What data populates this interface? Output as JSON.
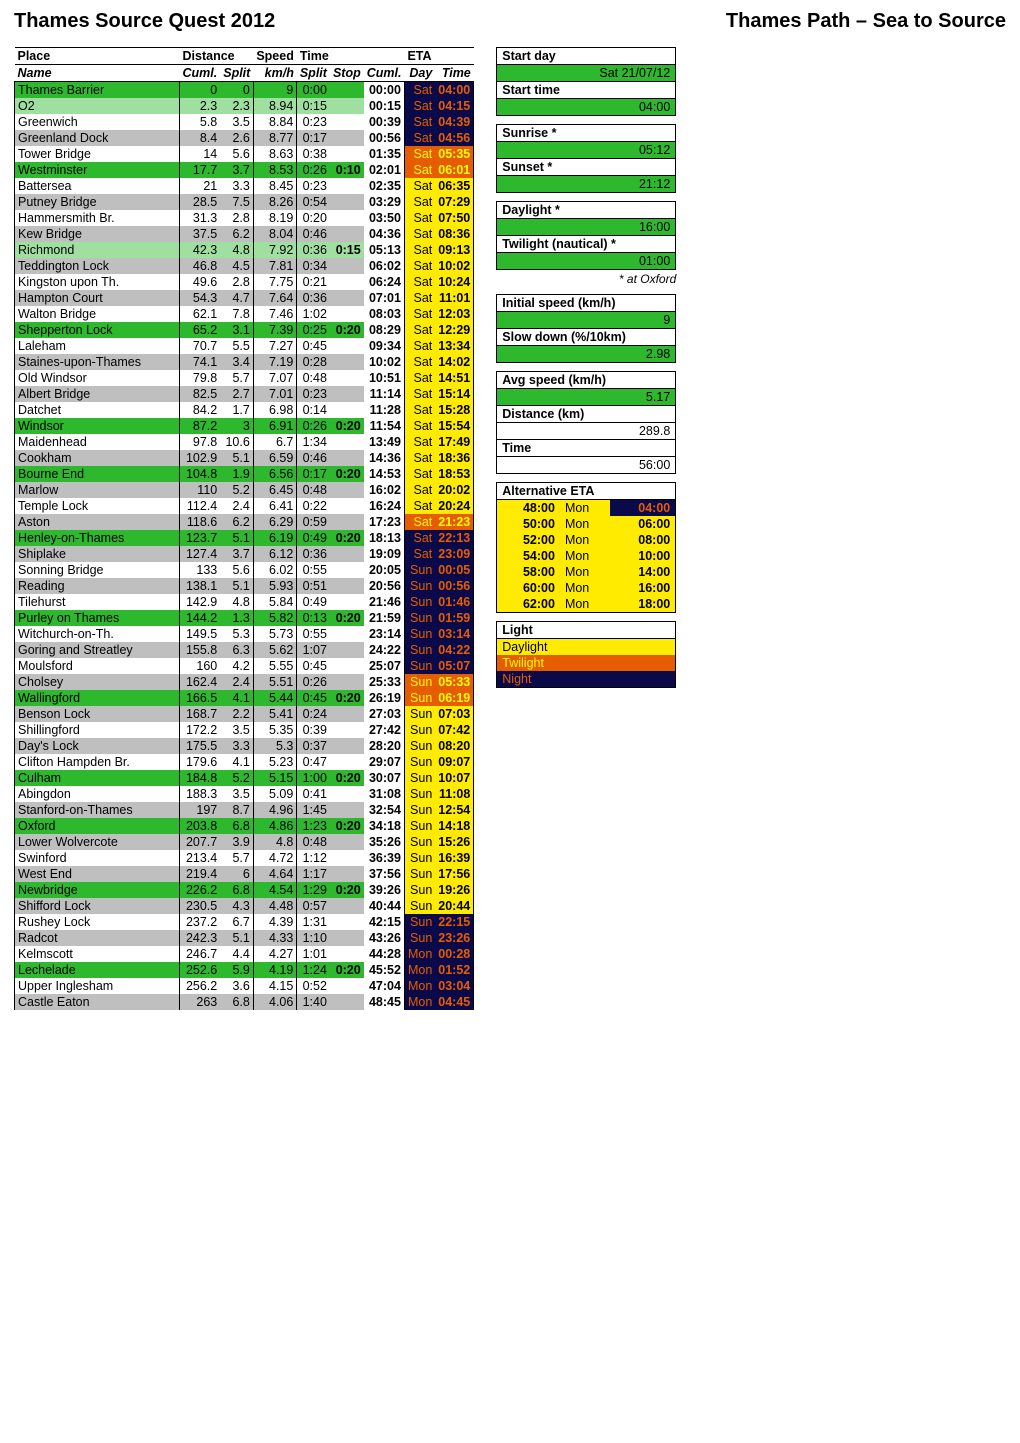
{
  "header": {
    "title_left": "Thames Source Quest 2012",
    "title_right": "Thames Path – Sea to Source"
  },
  "columns": {
    "group_place": "Place",
    "group_distance": "Distance",
    "group_speed": "Speed",
    "group_time": "Time",
    "group_eta": "ETA",
    "name": "Name",
    "cuml_dist": "Cuml.",
    "split": "Split",
    "kmh": "km/h",
    "split_t": "Split",
    "stop": "Stop",
    "cuml_t": "Cuml.",
    "day": "Day",
    "time": "Time"
  },
  "light_palette": {
    "daylight": {
      "bg": "#ffeb00",
      "fg": "#000000"
    },
    "twilight": {
      "bg": "#e65c00",
      "fg": "#ffff00"
    },
    "night": {
      "bg": "#0a0a4a",
      "fg": "#e65c00"
    }
  },
  "row_palette": {
    "green_light": "#9fdf9f",
    "green_dark": "#2eb82e",
    "grey": "#bfbfbf",
    "white": "#ffffff"
  },
  "rows": [
    {
      "name": "Thames Barrier",
      "cuml": 0,
      "split": 0,
      "kmh": 9,
      "tsplit": "0:00",
      "stop": "",
      "tcuml": "00:00",
      "day": "Sat",
      "eta": "04:00",
      "shade": "green_dark",
      "light": "night"
    },
    {
      "name": "O2",
      "cuml": 2.3,
      "split": 2.3,
      "kmh": 8.94,
      "tsplit": "0:15",
      "stop": "",
      "tcuml": "00:15",
      "day": "Sat",
      "eta": "04:15",
      "shade": "green_light",
      "light": "night"
    },
    {
      "name": "Greenwich",
      "cuml": 5.8,
      "split": 3.5,
      "kmh": 8.84,
      "tsplit": "0:23",
      "stop": "",
      "tcuml": "00:39",
      "day": "Sat",
      "eta": "04:39",
      "shade": "white",
      "light": "night"
    },
    {
      "name": "Greenland Dock",
      "cuml": 8.4,
      "split": 2.6,
      "kmh": 8.77,
      "tsplit": "0:17",
      "stop": "",
      "tcuml": "00:56",
      "day": "Sat",
      "eta": "04:56",
      "shade": "grey",
      "light": "night"
    },
    {
      "name": "Tower Bridge",
      "cuml": 14,
      "split": 5.6,
      "kmh": 8.63,
      "tsplit": "0:38",
      "stop": "",
      "tcuml": "01:35",
      "day": "Sat",
      "eta": "05:35",
      "shade": "white",
      "light": "twilight"
    },
    {
      "name": "Westminster",
      "cuml": 17.7,
      "split": 3.7,
      "kmh": 8.53,
      "tsplit": "0:26",
      "stop": "0:10",
      "tcuml": "02:01",
      "day": "Sat",
      "eta": "06:01",
      "shade": "green_dark",
      "light": "twilight"
    },
    {
      "name": "Battersea",
      "cuml": 21,
      "split": 3.3,
      "kmh": 8.45,
      "tsplit": "0:23",
      "stop": "",
      "tcuml": "02:35",
      "day": "Sat",
      "eta": "06:35",
      "shade": "white",
      "light": "daylight"
    },
    {
      "name": "Putney Bridge",
      "cuml": 28.5,
      "split": 7.5,
      "kmh": 8.26,
      "tsplit": "0:54",
      "stop": "",
      "tcuml": "03:29",
      "day": "Sat",
      "eta": "07:29",
      "shade": "grey",
      "light": "daylight"
    },
    {
      "name": "Hammersmith Br.",
      "cuml": 31.3,
      "split": 2.8,
      "kmh": 8.19,
      "tsplit": "0:20",
      "stop": "",
      "tcuml": "03:50",
      "day": "Sat",
      "eta": "07:50",
      "shade": "white",
      "light": "daylight"
    },
    {
      "name": "Kew Bridge",
      "cuml": 37.5,
      "split": 6.2,
      "kmh": 8.04,
      "tsplit": "0:46",
      "stop": "",
      "tcuml": "04:36",
      "day": "Sat",
      "eta": "08:36",
      "shade": "grey",
      "light": "daylight"
    },
    {
      "name": "Richmond",
      "cuml": 42.3,
      "split": 4.8,
      "kmh": 7.92,
      "tsplit": "0:36",
      "stop": "0:15",
      "tcuml": "05:13",
      "day": "Sat",
      "eta": "09:13",
      "shade": "green_light",
      "light": "daylight"
    },
    {
      "name": "Teddington Lock",
      "cuml": 46.8,
      "split": 4.5,
      "kmh": 7.81,
      "tsplit": "0:34",
      "stop": "",
      "tcuml": "06:02",
      "day": "Sat",
      "eta": "10:02",
      "shade": "grey",
      "light": "daylight"
    },
    {
      "name": "Kingston upon Th.",
      "cuml": 49.6,
      "split": 2.8,
      "kmh": 7.75,
      "tsplit": "0:21",
      "stop": "",
      "tcuml": "06:24",
      "day": "Sat",
      "eta": "10:24",
      "shade": "white",
      "light": "daylight"
    },
    {
      "name": "Hampton Court",
      "cuml": 54.3,
      "split": 4.7,
      "kmh": 7.64,
      "tsplit": "0:36",
      "stop": "",
      "tcuml": "07:01",
      "day": "Sat",
      "eta": "11:01",
      "shade": "grey",
      "light": "daylight"
    },
    {
      "name": "Walton Bridge",
      "cuml": 62.1,
      "split": 7.8,
      "kmh": 7.46,
      "tsplit": "1:02",
      "stop": "",
      "tcuml": "08:03",
      "day": "Sat",
      "eta": "12:03",
      "shade": "white",
      "light": "daylight"
    },
    {
      "name": "Shepperton Lock",
      "cuml": 65.2,
      "split": 3.1,
      "kmh": 7.39,
      "tsplit": "0:25",
      "stop": "0:20",
      "tcuml": "08:29",
      "day": "Sat",
      "eta": "12:29",
      "shade": "green_dark",
      "light": "daylight"
    },
    {
      "name": "Laleham",
      "cuml": 70.7,
      "split": 5.5,
      "kmh": 7.27,
      "tsplit": "0:45",
      "stop": "",
      "tcuml": "09:34",
      "day": "Sat",
      "eta": "13:34",
      "shade": "white",
      "light": "daylight"
    },
    {
      "name": "Staines-upon-Thames",
      "cuml": 74.1,
      "split": 3.4,
      "kmh": 7.19,
      "tsplit": "0:28",
      "stop": "",
      "tcuml": "10:02",
      "day": "Sat",
      "eta": "14:02",
      "shade": "grey",
      "light": "daylight"
    },
    {
      "name": "Old Windsor",
      "cuml": 79.8,
      "split": 5.7,
      "kmh": 7.07,
      "tsplit": "0:48",
      "stop": "",
      "tcuml": "10:51",
      "day": "Sat",
      "eta": "14:51",
      "shade": "white",
      "light": "daylight"
    },
    {
      "name": "Albert Bridge",
      "cuml": 82.5,
      "split": 2.7,
      "kmh": 7.01,
      "tsplit": "0:23",
      "stop": "",
      "tcuml": "11:14",
      "day": "Sat",
      "eta": "15:14",
      "shade": "grey",
      "light": "daylight"
    },
    {
      "name": "Datchet",
      "cuml": 84.2,
      "split": 1.7,
      "kmh": 6.98,
      "tsplit": "0:14",
      "stop": "",
      "tcuml": "11:28",
      "day": "Sat",
      "eta": "15:28",
      "shade": "white",
      "light": "daylight"
    },
    {
      "name": "Windsor",
      "cuml": 87.2,
      "split": 3,
      "kmh": 6.91,
      "tsplit": "0:26",
      "stop": "0:20",
      "tcuml": "11:54",
      "day": "Sat",
      "eta": "15:54",
      "shade": "green_dark",
      "light": "daylight"
    },
    {
      "name": "Maidenhead",
      "cuml": 97.8,
      "split": 10.6,
      "kmh": 6.7,
      "tsplit": "1:34",
      "stop": "",
      "tcuml": "13:49",
      "day": "Sat",
      "eta": "17:49",
      "shade": "white",
      "light": "daylight"
    },
    {
      "name": "Cookham",
      "cuml": 102.9,
      "split": 5.1,
      "kmh": 6.59,
      "tsplit": "0:46",
      "stop": "",
      "tcuml": "14:36",
      "day": "Sat",
      "eta": "18:36",
      "shade": "grey",
      "light": "daylight"
    },
    {
      "name": "Bourne End",
      "cuml": 104.8,
      "split": 1.9,
      "kmh": 6.56,
      "tsplit": "0:17",
      "stop": "0:20",
      "tcuml": "14:53",
      "day": "Sat",
      "eta": "18:53",
      "shade": "green_dark",
      "light": "daylight"
    },
    {
      "name": "Marlow",
      "cuml": 110,
      "split": 5.2,
      "kmh": 6.45,
      "tsplit": "0:48",
      "stop": "",
      "tcuml": "16:02",
      "day": "Sat",
      "eta": "20:02",
      "shade": "grey",
      "light": "daylight"
    },
    {
      "name": "Temple Lock",
      "cuml": 112.4,
      "split": 2.4,
      "kmh": 6.41,
      "tsplit": "0:22",
      "stop": "",
      "tcuml": "16:24",
      "day": "Sat",
      "eta": "20:24",
      "shade": "white",
      "light": "daylight"
    },
    {
      "name": "Aston",
      "cuml": 118.6,
      "split": 6.2,
      "kmh": 6.29,
      "tsplit": "0:59",
      "stop": "",
      "tcuml": "17:23",
      "day": "Sat",
      "eta": "21:23",
      "shade": "grey",
      "light": "twilight"
    },
    {
      "name": "Henley-on-Thames",
      "cuml": 123.7,
      "split": 5.1,
      "kmh": 6.19,
      "tsplit": "0:49",
      "stop": "0:20",
      "tcuml": "18:13",
      "day": "Sat",
      "eta": "22:13",
      "shade": "green_dark",
      "light": "night"
    },
    {
      "name": "Shiplake",
      "cuml": 127.4,
      "split": 3.7,
      "kmh": 6.12,
      "tsplit": "0:36",
      "stop": "",
      "tcuml": "19:09",
      "day": "Sat",
      "eta": "23:09",
      "shade": "grey",
      "light": "night"
    },
    {
      "name": "Sonning Bridge",
      "cuml": 133,
      "split": 5.6,
      "kmh": 6.02,
      "tsplit": "0:55",
      "stop": "",
      "tcuml": "20:05",
      "day": "Sun",
      "eta": "00:05",
      "shade": "white",
      "light": "night"
    },
    {
      "name": "Reading",
      "cuml": 138.1,
      "split": 5.1,
      "kmh": 5.93,
      "tsplit": "0:51",
      "stop": "",
      "tcuml": "20:56",
      "day": "Sun",
      "eta": "00:56",
      "shade": "grey",
      "light": "night"
    },
    {
      "name": "Tilehurst",
      "cuml": 142.9,
      "split": 4.8,
      "kmh": 5.84,
      "tsplit": "0:49",
      "stop": "",
      "tcuml": "21:46",
      "day": "Sun",
      "eta": "01:46",
      "shade": "white",
      "light": "night"
    },
    {
      "name": "Purley on Thames",
      "cuml": 144.2,
      "split": 1.3,
      "kmh": 5.82,
      "tsplit": "0:13",
      "stop": "0:20",
      "tcuml": "21:59",
      "day": "Sun",
      "eta": "01:59",
      "shade": "green_dark",
      "light": "night"
    },
    {
      "name": "Witchurch-on-Th.",
      "cuml": 149.5,
      "split": 5.3,
      "kmh": 5.73,
      "tsplit": "0:55",
      "stop": "",
      "tcuml": "23:14",
      "day": "Sun",
      "eta": "03:14",
      "shade": "white",
      "light": "night"
    },
    {
      "name": "Goring and Streatley",
      "cuml": 155.8,
      "split": 6.3,
      "kmh": 5.62,
      "tsplit": "1:07",
      "stop": "",
      "tcuml": "24:22",
      "day": "Sun",
      "eta": "04:22",
      "shade": "grey",
      "light": "night"
    },
    {
      "name": "Moulsford",
      "cuml": 160,
      "split": 4.2,
      "kmh": 5.55,
      "tsplit": "0:45",
      "stop": "",
      "tcuml": "25:07",
      "day": "Sun",
      "eta": "05:07",
      "shade": "white",
      "light": "night"
    },
    {
      "name": "Cholsey",
      "cuml": 162.4,
      "split": 2.4,
      "kmh": 5.51,
      "tsplit": "0:26",
      "stop": "",
      "tcuml": "25:33",
      "day": "Sun",
      "eta": "05:33",
      "shade": "grey",
      "light": "twilight"
    },
    {
      "name": "Wallingford",
      "cuml": 166.5,
      "split": 4.1,
      "kmh": 5.44,
      "tsplit": "0:45",
      "stop": "0:20",
      "tcuml": "26:19",
      "day": "Sun",
      "eta": "06:19",
      "shade": "green_dark",
      "light": "twilight"
    },
    {
      "name": "Benson Lock",
      "cuml": 168.7,
      "split": 2.2,
      "kmh": 5.41,
      "tsplit": "0:24",
      "stop": "",
      "tcuml": "27:03",
      "day": "Sun",
      "eta": "07:03",
      "shade": "grey",
      "light": "daylight"
    },
    {
      "name": "Shillingford",
      "cuml": 172.2,
      "split": 3.5,
      "kmh": 5.35,
      "tsplit": "0:39",
      "stop": "",
      "tcuml": "27:42",
      "day": "Sun",
      "eta": "07:42",
      "shade": "white",
      "light": "daylight"
    },
    {
      "name": "Day's Lock",
      "cuml": 175.5,
      "split": 3.3,
      "kmh": 5.3,
      "tsplit": "0:37",
      "stop": "",
      "tcuml": "28:20",
      "day": "Sun",
      "eta": "08:20",
      "shade": "grey",
      "light": "daylight"
    },
    {
      "name": "Clifton Hampden Br.",
      "cuml": 179.6,
      "split": 4.1,
      "kmh": 5.23,
      "tsplit": "0:47",
      "stop": "",
      "tcuml": "29:07",
      "day": "Sun",
      "eta": "09:07",
      "shade": "white",
      "light": "daylight"
    },
    {
      "name": "Culham",
      "cuml": 184.8,
      "split": 5.2,
      "kmh": 5.15,
      "tsplit": "1:00",
      "stop": "0:20",
      "tcuml": "30:07",
      "day": "Sun",
      "eta": "10:07",
      "shade": "green_dark",
      "light": "daylight"
    },
    {
      "name": "Abingdon",
      "cuml": 188.3,
      "split": 3.5,
      "kmh": 5.09,
      "tsplit": "0:41",
      "stop": "",
      "tcuml": "31:08",
      "day": "Sun",
      "eta": "11:08",
      "shade": "white",
      "light": "daylight"
    },
    {
      "name": "Stanford-on-Thames",
      "cuml": 197,
      "split": 8.7,
      "kmh": 4.96,
      "tsplit": "1:45",
      "stop": "",
      "tcuml": "32:54",
      "day": "Sun",
      "eta": "12:54",
      "shade": "grey",
      "light": "daylight"
    },
    {
      "name": "Oxford",
      "cuml": 203.8,
      "split": 6.8,
      "kmh": 4.86,
      "tsplit": "1:23",
      "stop": "0:20",
      "tcuml": "34:18",
      "day": "Sun",
      "eta": "14:18",
      "shade": "green_dark",
      "light": "daylight"
    },
    {
      "name": "Lower Wolvercote",
      "cuml": 207.7,
      "split": 3.9,
      "kmh": 4.8,
      "tsplit": "0:48",
      "stop": "",
      "tcuml": "35:26",
      "day": "Sun",
      "eta": "15:26",
      "shade": "grey",
      "light": "daylight"
    },
    {
      "name": "Swinford",
      "cuml": 213.4,
      "split": 5.7,
      "kmh": 4.72,
      "tsplit": "1:12",
      "stop": "",
      "tcuml": "36:39",
      "day": "Sun",
      "eta": "16:39",
      "shade": "white",
      "light": "daylight"
    },
    {
      "name": "West End",
      "cuml": 219.4,
      "split": 6,
      "kmh": 4.64,
      "tsplit": "1:17",
      "stop": "",
      "tcuml": "37:56",
      "day": "Sun",
      "eta": "17:56",
      "shade": "grey",
      "light": "daylight"
    },
    {
      "name": "Newbridge",
      "cuml": 226.2,
      "split": 6.8,
      "kmh": 4.54,
      "tsplit": "1:29",
      "stop": "0:20",
      "tcuml": "39:26",
      "day": "Sun",
      "eta": "19:26",
      "shade": "green_dark",
      "light": "daylight"
    },
    {
      "name": "Shifford Lock",
      "cuml": 230.5,
      "split": 4.3,
      "kmh": 4.48,
      "tsplit": "0:57",
      "stop": "",
      "tcuml": "40:44",
      "day": "Sun",
      "eta": "20:44",
      "shade": "grey",
      "light": "daylight"
    },
    {
      "name": "Rushey Lock",
      "cuml": 237.2,
      "split": 6.7,
      "kmh": 4.39,
      "tsplit": "1:31",
      "stop": "",
      "tcuml": "42:15",
      "day": "Sun",
      "eta": "22:15",
      "shade": "white",
      "light": "night"
    },
    {
      "name": "Radcot",
      "cuml": 242.3,
      "split": 5.1,
      "kmh": 4.33,
      "tsplit": "1:10",
      "stop": "",
      "tcuml": "43:26",
      "day": "Sun",
      "eta": "23:26",
      "shade": "grey",
      "light": "night"
    },
    {
      "name": "Kelmscott",
      "cuml": 246.7,
      "split": 4.4,
      "kmh": 4.27,
      "tsplit": "1:01",
      "stop": "",
      "tcuml": "44:28",
      "day": "Mon",
      "eta": "00:28",
      "shade": "white",
      "light": "night"
    },
    {
      "name": "Lechelade",
      "cuml": 252.6,
      "split": 5.9,
      "kmh": 4.19,
      "tsplit": "1:24",
      "stop": "0:20",
      "tcuml": "45:52",
      "day": "Mon",
      "eta": "01:52",
      "shade": "green_dark",
      "light": "night"
    },
    {
      "name": "Upper Inglesham",
      "cuml": 256.2,
      "split": 3.6,
      "kmh": 4.15,
      "tsplit": "0:52",
      "stop": "",
      "tcuml": "47:04",
      "day": "Mon",
      "eta": "03:04",
      "shade": "white",
      "light": "night"
    },
    {
      "name": "Castle Eaton",
      "cuml": 263,
      "split": 6.8,
      "kmh": 4.06,
      "tsplit": "1:40",
      "stop": "",
      "tcuml": "48:45",
      "day": "Mon",
      "eta": "04:45",
      "shade": "grey",
      "light": "night"
    }
  ],
  "side": {
    "start_day_label": "Start day",
    "start_day_value": "Sat 21/07/12",
    "start_time_label": "Start time",
    "start_time_value": "04:00",
    "sunrise_label": "Sunrise *",
    "sunrise_value": "05:12",
    "sunset_label": "Sunset *",
    "sunset_value": "21:12",
    "daylight_label": "Daylight *",
    "daylight_value": "16:00",
    "twilight_label": "Twilight (nautical) *",
    "twilight_value": "01:00",
    "footnote": "* at Oxford",
    "initial_speed_label": "Initial speed (km/h)",
    "initial_speed_value": "9",
    "slowdown_label": "Slow down (%/10km)",
    "slowdown_value": "2.98",
    "avg_speed_label": "Avg speed (km/h)",
    "avg_speed_value": "5.17",
    "distance_label": "Distance (km)",
    "distance_value": "289.8",
    "time_label": "Time",
    "time_value": "56:00",
    "input_bg": "#2eb82e"
  },
  "alternative_eta": {
    "title": "Alternative ETA",
    "heading_bg": "#ffeb00",
    "rows": [
      {
        "time": "48:00",
        "day": "Mon",
        "eta": "04:00",
        "light": "night"
      },
      {
        "time": "50:00",
        "day": "Mon",
        "eta": "06:00",
        "light": "daylight"
      },
      {
        "time": "52:00",
        "day": "Mon",
        "eta": "08:00",
        "light": "daylight"
      },
      {
        "time": "54:00",
        "day": "Mon",
        "eta": "10:00",
        "light": "daylight"
      },
      {
        "time": "58:00",
        "day": "Mon",
        "eta": "14:00",
        "light": "daylight"
      },
      {
        "time": "60:00",
        "day": "Mon",
        "eta": "16:00",
        "light": "daylight"
      },
      {
        "time": "62:00",
        "day": "Mon",
        "eta": "18:00",
        "light": "daylight"
      }
    ]
  },
  "light_legend": {
    "title": "Light",
    "items": [
      {
        "label": "Daylight",
        "key": "daylight"
      },
      {
        "label": "Twilight",
        "key": "twilight"
      },
      {
        "label": "Night",
        "key": "night"
      }
    ]
  }
}
